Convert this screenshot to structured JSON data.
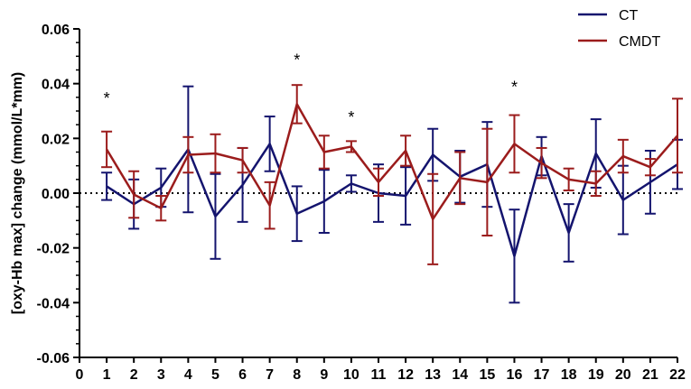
{
  "chart_data": {
    "type": "line",
    "ylabel": "[oxy-Hb max] change (mmol/L*mm)",
    "xlabel": "",
    "x": [
      1,
      2,
      3,
      4,
      5,
      6,
      7,
      8,
      9,
      10,
      11,
      12,
      13,
      14,
      15,
      16,
      17,
      18,
      19,
      20,
      21,
      22
    ],
    "xlim": [
      0,
      22
    ],
    "x_ticks": [
      "0",
      "1",
      "2",
      "3",
      "4",
      "5",
      "6",
      "7",
      "8",
      "9",
      "10",
      "11",
      "12",
      "13",
      "14",
      "15",
      "16",
      "17",
      "18",
      "19",
      "20",
      "21",
      "22"
    ],
    "ylim": [
      -0.06,
      0.06
    ],
    "y_ticks": [
      "-0.06",
      "-0.04",
      "-0.02",
      "0.00",
      "0.02",
      "0.04",
      "0.06"
    ],
    "reference_line": {
      "y": 0,
      "style": "dotted"
    },
    "series": [
      {
        "name": "CT",
        "color": "#14146e",
        "values": [
          0.0025,
          -0.004,
          0.002,
          0.016,
          -0.0085,
          0.003,
          0.018,
          -0.0075,
          -0.003,
          0.0035,
          0.0,
          -0.001,
          0.014,
          0.006,
          0.0105,
          -0.023,
          0.0135,
          -0.0145,
          0.0145,
          -0.0025,
          0.004,
          0.0105
        ],
        "error": [
          0.005,
          0.009,
          0.007,
          0.023,
          0.0155,
          0.0135,
          0.01,
          0.01,
          0.0115,
          0.003,
          0.0105,
          0.0105,
          0.0095,
          0.0095,
          0.0155,
          0.017,
          0.007,
          0.0105,
          0.0125,
          0.0125,
          0.0115,
          0.009
        ]
      },
      {
        "name": "CMDT",
        "color": "#9b1c1c",
        "values": [
          0.016,
          -0.0005,
          -0.0055,
          0.014,
          0.0145,
          0.012,
          -0.0045,
          0.0325,
          0.015,
          0.017,
          0.004,
          0.0155,
          -0.0095,
          0.0055,
          0.004,
          0.018,
          0.011,
          0.005,
          0.0035,
          0.0135,
          0.0095,
          0.021
        ],
        "error": [
          0.0065,
          0.0085,
          0.0045,
          0.0065,
          0.007,
          0.0045,
          0.0085,
          0.007,
          0.006,
          0.002,
          0.005,
          0.0055,
          0.0165,
          0.0095,
          0.0195,
          0.0105,
          0.0055,
          0.004,
          0.0045,
          0.006,
          0.003,
          0.0135
        ]
      }
    ],
    "annotations": [
      {
        "x": 1,
        "y": 0.036,
        "text": "*"
      },
      {
        "x": 8,
        "y": 0.05,
        "text": "*"
      },
      {
        "x": 10,
        "y": 0.029,
        "text": "*"
      },
      {
        "x": 16,
        "y": 0.04,
        "text": "*"
      }
    ],
    "legend": {
      "placement": "top-right",
      "entries": [
        "CT",
        "CMDT"
      ]
    }
  }
}
